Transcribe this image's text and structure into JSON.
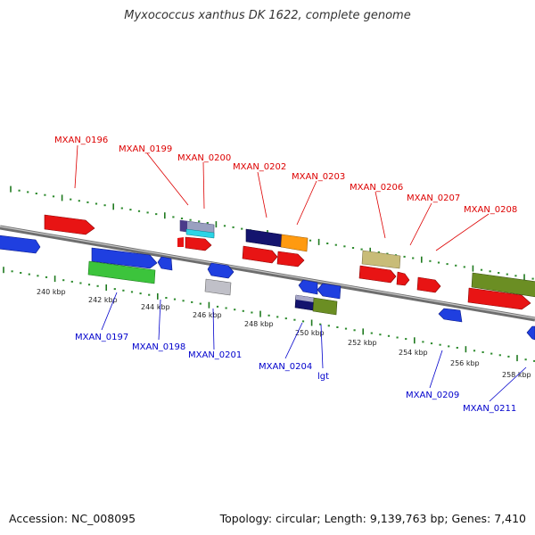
{
  "title": "Myxococcus xanthus DK 1622, complete genome",
  "accession_text": "Accession: NC_008095",
  "summary_text": "Topology: circular; Length: 9,139,763 bp; Genes: 7,410",
  "colors": {
    "backbone": "#8c8c8c",
    "tick_outer": "#2e8b2e",
    "tick_inner": "#1f7a1f",
    "top_label": "#dd0000",
    "bottom_label": "#0000cc"
  },
  "scale_labels": [
    "240 kbp",
    "242 kbp",
    "244 kbp",
    "246 kbp",
    "248 kbp",
    "250 kbp",
    "252 kbp",
    "254 kbp",
    "256 kbp",
    "258 kbp"
  ],
  "gene_labels_top": [
    "MXAN_0196",
    "MXAN_0199",
    "MXAN_0200",
    "MXAN_0202",
    "MXAN_0203",
    "MXAN_0206",
    "MXAN_0207",
    "MXAN_0208"
  ],
  "gene_labels_bottom": [
    "MXAN_0197",
    "MXAN_0198",
    "MXAN_0201",
    "MXAN_0204",
    "lgt",
    "MXAN_0209",
    "MXAN_0211"
  ]
}
